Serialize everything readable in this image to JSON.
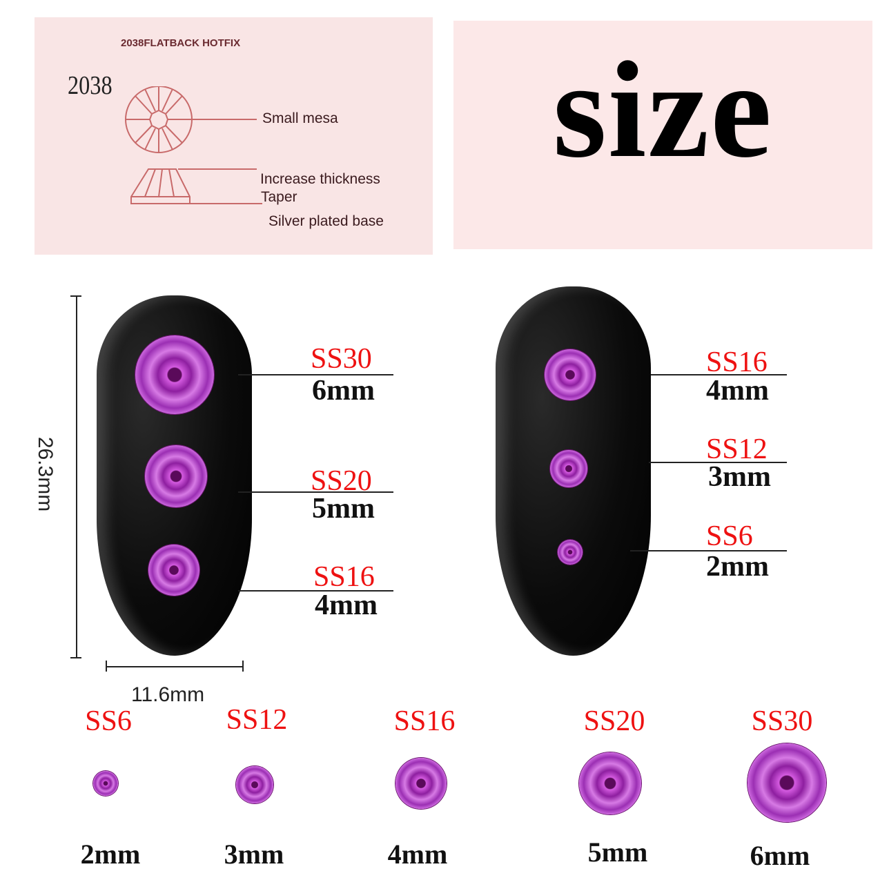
{
  "diagram_panel": {
    "header": "2038FLATBACK HOTFIX",
    "model": "2038",
    "labels": {
      "top_view": "Small mesa",
      "thickness": "Increase thickness",
      "taper": "Taper",
      "base": "Silver plated base"
    }
  },
  "title": "size",
  "dimensions": {
    "height": "26.3mm",
    "width": "11.6mm"
  },
  "nail_left": [
    {
      "ss": "SS30",
      "mm": "6mm"
    },
    {
      "ss": "SS20",
      "mm": "5mm"
    },
    {
      "ss": "SS16",
      "mm": "4mm"
    }
  ],
  "nail_right": [
    {
      "ss": "SS16",
      "mm": "4mm"
    },
    {
      "ss": "SS12",
      "mm": "3mm"
    },
    {
      "ss": "SS6",
      "mm": "2mm"
    }
  ],
  "sizes": [
    {
      "ss": "SS6",
      "mm": "2mm"
    },
    {
      "ss": "SS12",
      "mm": "3mm"
    },
    {
      "ss": "SS16",
      "mm": "4mm"
    },
    {
      "ss": "SS20",
      "mm": "5mm"
    },
    {
      "ss": "SS30",
      "mm": "6mm"
    }
  ],
  "colors": {
    "label_red": "#ee1111",
    "gem": "#b03ac8",
    "panel": "#f9e5e5",
    "diagram_line": "#c86a6a"
  }
}
